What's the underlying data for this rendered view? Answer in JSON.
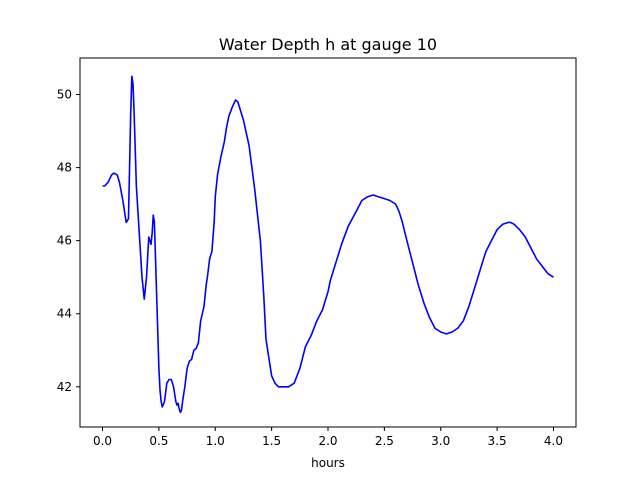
{
  "chart_data": {
    "type": "line",
    "title": "Water Depth h at gauge 10",
    "xlabel": "hours",
    "ylabel": "",
    "xlim": [
      -0.2,
      4.2
    ],
    "ylim": [
      40.9,
      51.0
    ],
    "xticks": [
      0.0,
      0.5,
      1.0,
      1.5,
      2.0,
      2.5,
      3.0,
      3.5,
      4.0
    ],
    "xtick_labels": [
      "0.0",
      "0.5",
      "1.0",
      "1.5",
      "2.0",
      "2.5",
      "3.0",
      "3.5",
      "4.0"
    ],
    "yticks": [
      42,
      44,
      46,
      48,
      50
    ],
    "ytick_labels": [
      "42",
      "44",
      "46",
      "48",
      "50"
    ],
    "grid": false,
    "series": [
      {
        "color": "#0000ff",
        "x": [
          0.0,
          0.02,
          0.05,
          0.08,
          0.1,
          0.13,
          0.15,
          0.18,
          0.21,
          0.23,
          0.25,
          0.26,
          0.27,
          0.28,
          0.29,
          0.3,
          0.31,
          0.33,
          0.35,
          0.37,
          0.39,
          0.41,
          0.43,
          0.44,
          0.45,
          0.46,
          0.47,
          0.48,
          0.49,
          0.5,
          0.51,
          0.52,
          0.53,
          0.55,
          0.57,
          0.59,
          0.61,
          0.63,
          0.65,
          0.66,
          0.67,
          0.68,
          0.69,
          0.7,
          0.71,
          0.72,
          0.73,
          0.75,
          0.77,
          0.79,
          0.81,
          0.83,
          0.85,
          0.87,
          0.9,
          0.92,
          0.93,
          0.95,
          0.97,
          0.99,
          1.0,
          1.02,
          1.05,
          1.08,
          1.1,
          1.12,
          1.15,
          1.18,
          1.2,
          1.22,
          1.25,
          1.3,
          1.35,
          1.4,
          1.43,
          1.45,
          1.48,
          1.5,
          1.53,
          1.56,
          1.6,
          1.65,
          1.7,
          1.75,
          1.8,
          1.85,
          1.9,
          1.95,
          1.97,
          2.0,
          2.02,
          2.05,
          2.08,
          2.12,
          2.18,
          2.25,
          2.3,
          2.35,
          2.4,
          2.45,
          2.5,
          2.55,
          2.6,
          2.63,
          2.66,
          2.7,
          2.75,
          2.8,
          2.85,
          2.9,
          2.95,
          3.0,
          3.05,
          3.1,
          3.15,
          3.2,
          3.25,
          3.3,
          3.35,
          3.4,
          3.45,
          3.5,
          3.55,
          3.6,
          3.62,
          3.65,
          3.7,
          3.75,
          3.8,
          3.85,
          3.9,
          3.95,
          4.0
        ],
        "values": [
          47.5,
          47.5,
          47.6,
          47.8,
          47.85,
          47.8,
          47.6,
          47.1,
          46.5,
          46.6,
          49.5,
          50.5,
          50.3,
          49.5,
          48.5,
          47.5,
          47.0,
          46.0,
          45.0,
          44.4,
          45.0,
          46.1,
          45.9,
          46.2,
          46.7,
          46.5,
          45.5,
          44.5,
          43.5,
          42.5,
          41.9,
          41.6,
          41.45,
          41.6,
          42.1,
          42.2,
          42.2,
          42.0,
          41.6,
          41.5,
          41.55,
          41.4,
          41.3,
          41.35,
          41.6,
          41.8,
          42.0,
          42.5,
          42.7,
          42.75,
          43.0,
          43.05,
          43.2,
          43.8,
          44.2,
          44.8,
          45.0,
          45.5,
          45.7,
          46.5,
          47.2,
          47.8,
          48.3,
          48.7,
          49.1,
          49.4,
          49.65,
          49.85,
          49.8,
          49.6,
          49.3,
          48.6,
          47.4,
          46.0,
          44.5,
          43.3,
          42.7,
          42.3,
          42.1,
          42.0,
          42.0,
          42.0,
          42.1,
          42.5,
          43.1,
          43.4,
          43.8,
          44.1,
          44.3,
          44.6,
          44.9,
          45.2,
          45.5,
          45.9,
          46.4,
          46.8,
          47.1,
          47.2,
          47.25,
          47.2,
          47.15,
          47.1,
          47.0,
          46.8,
          46.5,
          46.0,
          45.4,
          44.8,
          44.3,
          43.9,
          43.6,
          43.5,
          43.45,
          43.5,
          43.6,
          43.8,
          44.2,
          44.7,
          45.2,
          45.7,
          46.0,
          46.3,
          46.45,
          46.5,
          46.5,
          46.45,
          46.3,
          46.1,
          45.8,
          45.5,
          45.3,
          45.1,
          45.0
        ]
      }
    ]
  }
}
